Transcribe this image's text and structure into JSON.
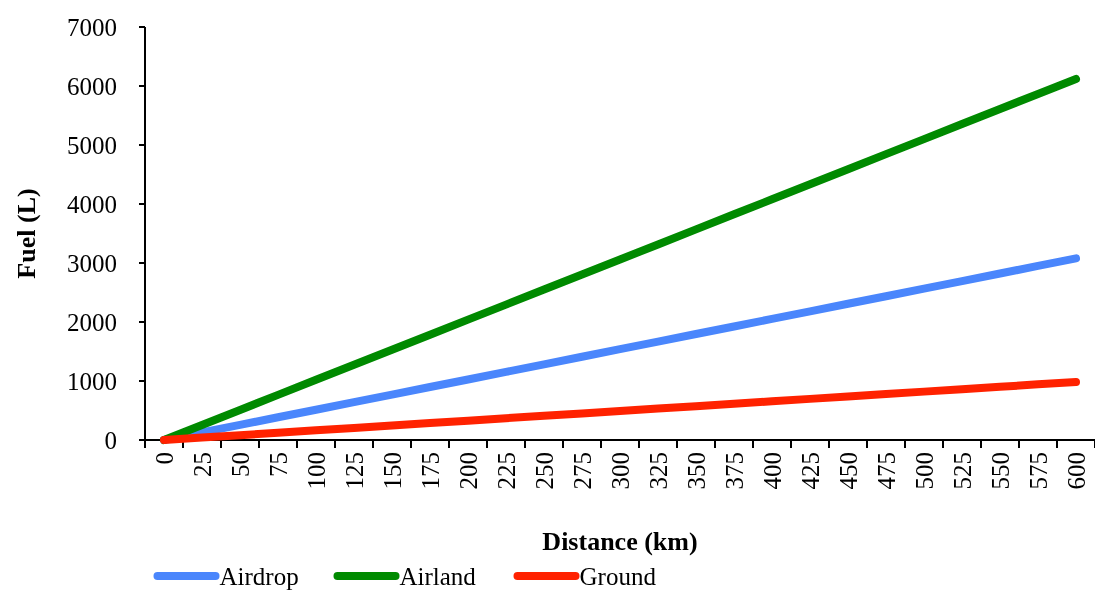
{
  "chart_data": {
    "type": "line",
    "xlabel": "Distance (km)",
    "ylabel": "Fuel (L)",
    "categories": [
      "0",
      "25",
      "50",
      "75",
      "100",
      "125",
      "150",
      "175",
      "200",
      "225",
      "250",
      "275",
      "300",
      "325",
      "350",
      "375",
      "400",
      "425",
      "450",
      "475",
      "500",
      "525",
      "550",
      "575",
      "600"
    ],
    "series": [
      {
        "name": "Airdrop",
        "color": "#4a86fc",
        "values": [
          0,
          128,
          257,
          385,
          513,
          641,
          770,
          898,
          1026,
          1154,
          1283,
          1411,
          1539,
          1667,
          1796,
          1924,
          2052,
          2180,
          2309,
          2437,
          2565,
          2693,
          2822,
          2950,
          3078
        ]
      },
      {
        "name": "Airland",
        "color": "#008a00",
        "values": [
          0,
          255,
          510,
          765,
          1020,
          1275,
          1530,
          1785,
          2040,
          2295,
          2550,
          2805,
          3060,
          3315,
          3570,
          3825,
          4080,
          4335,
          4590,
          4845,
          5100,
          5355,
          5610,
          5865,
          6120
        ]
      },
      {
        "name": "Ground",
        "color": "#ff2200",
        "values": [
          0,
          41,
          82,
          123,
          164,
          205,
          246,
          287,
          328,
          369,
          410,
          451,
          492,
          533,
          574,
          615,
          656,
          697,
          738,
          779,
          820,
          861,
          902,
          943,
          984
        ]
      }
    ],
    "ylim": [
      0,
      7000
    ],
    "yticks": [
      0,
      1000,
      2000,
      3000,
      4000,
      5000,
      6000,
      7000
    ],
    "grid": false,
    "legend": "bottom",
    "marker": "none",
    "line_style": "solid"
  }
}
